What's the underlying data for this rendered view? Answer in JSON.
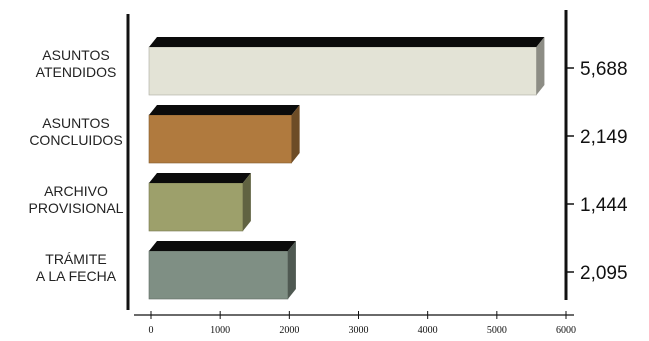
{
  "chart_data": {
    "type": "bar",
    "orientation": "horizontal",
    "categories": [
      [
        "ASUNTOS",
        "ATENDIDOS"
      ],
      [
        "ASUNTOS",
        "CONCLUIDOS"
      ],
      [
        "ARCHIVO",
        "PROVISIONAL"
      ],
      [
        "TRÁMITE",
        "A LA FECHA"
      ]
    ],
    "values": [
      5688,
      2149,
      1444,
      2095
    ],
    "value_labels": [
      "5,688",
      "2,149",
      "1,444",
      "2,095"
    ],
    "bar_colors": [
      "#e3e3d6",
      "#b07a3e",
      "#9da06b",
      "#7f8f84"
    ],
    "xlim": [
      0,
      6000
    ],
    "xticks": [
      0,
      1000,
      2000,
      3000,
      4000,
      5000,
      6000
    ],
    "title": "",
    "xlabel": "",
    "ylabel": "",
    "grid": false,
    "legend": false
  }
}
